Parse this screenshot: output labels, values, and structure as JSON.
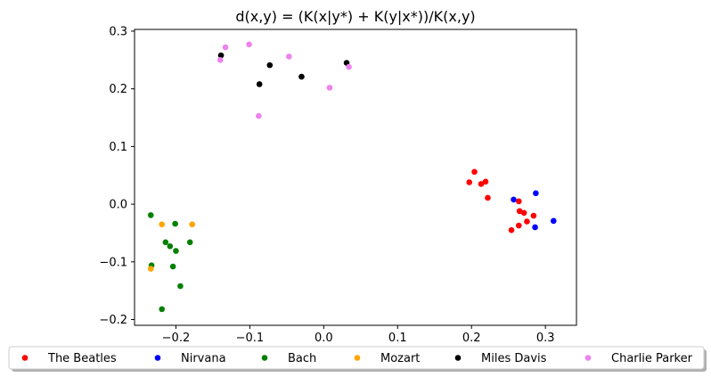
{
  "chart_data": {
    "type": "scatter",
    "title": "d(x,y) = (K(x|y*) + K(y|x*))/K(x,y)",
    "xlabel": "",
    "ylabel": "",
    "xlim": [
      -0.256,
      0.342
    ],
    "ylim": [
      -0.21,
      0.303
    ],
    "xticks": [
      -0.2,
      -0.1,
      0.0,
      0.1,
      0.2,
      0.3
    ],
    "xtick_labels": [
      "−0.2",
      "−0.1",
      "0.0",
      "0.1",
      "0.2",
      "0.3"
    ],
    "yticks": [
      -0.2,
      -0.1,
      0.0,
      0.1,
      0.2,
      0.3
    ],
    "ytick_labels": [
      "−0.2",
      "−0.1",
      "0.0",
      "0.1",
      "0.2",
      "0.3"
    ],
    "grid": false,
    "legend_position": "bottom-center",
    "series": [
      {
        "name": "The Beatles",
        "color": "#ff0000",
        "points": [
          [
            0.204,
            0.056
          ],
          [
            0.197,
            0.038
          ],
          [
            0.213,
            0.035
          ],
          [
            0.219,
            0.039
          ],
          [
            0.222,
            0.011
          ],
          [
            0.264,
            0.005
          ],
          [
            0.265,
            -0.012
          ],
          [
            0.271,
            -0.015
          ],
          [
            0.284,
            -0.02
          ],
          [
            0.275,
            -0.03
          ],
          [
            0.264,
            -0.037
          ],
          [
            0.254,
            -0.045
          ]
        ]
      },
      {
        "name": "Nirvana",
        "color": "#0000ff",
        "points": [
          [
            0.257,
            0.008
          ],
          [
            0.287,
            0.019
          ],
          [
            0.311,
            -0.029
          ],
          [
            0.286,
            -0.04
          ]
        ]
      },
      {
        "name": "Bach",
        "color": "#008000",
        "points": [
          [
            -0.234,
            -0.019
          ],
          [
            -0.201,
            -0.034
          ],
          [
            -0.214,
            -0.066
          ],
          [
            -0.208,
            -0.073
          ],
          [
            -0.2,
            -0.081
          ],
          [
            -0.181,
            -0.066
          ],
          [
            -0.233,
            -0.106
          ],
          [
            -0.204,
            -0.108
          ],
          [
            -0.194,
            -0.142
          ],
          [
            -0.219,
            -0.182
          ]
        ]
      },
      {
        "name": "Mozart",
        "color": "#ffa500",
        "points": [
          [
            -0.219,
            -0.035
          ],
          [
            -0.178,
            -0.035
          ],
          [
            -0.234,
            -0.112
          ]
        ]
      },
      {
        "name": "Miles Davis",
        "color": "#000000",
        "points": [
          [
            -0.139,
            0.258
          ],
          [
            -0.073,
            0.241
          ],
          [
            -0.03,
            0.221
          ],
          [
            -0.087,
            0.208
          ],
          [
            0.031,
            0.245
          ]
        ]
      },
      {
        "name": "Charlie Parker",
        "color": "#ee82ee",
        "points": [
          [
            -0.14,
            0.25
          ],
          [
            -0.133,
            0.272
          ],
          [
            -0.101,
            0.277
          ],
          [
            -0.047,
            0.256
          ],
          [
            0.034,
            0.238
          ],
          [
            0.008,
            0.202
          ],
          [
            -0.088,
            0.153
          ]
        ]
      }
    ]
  }
}
